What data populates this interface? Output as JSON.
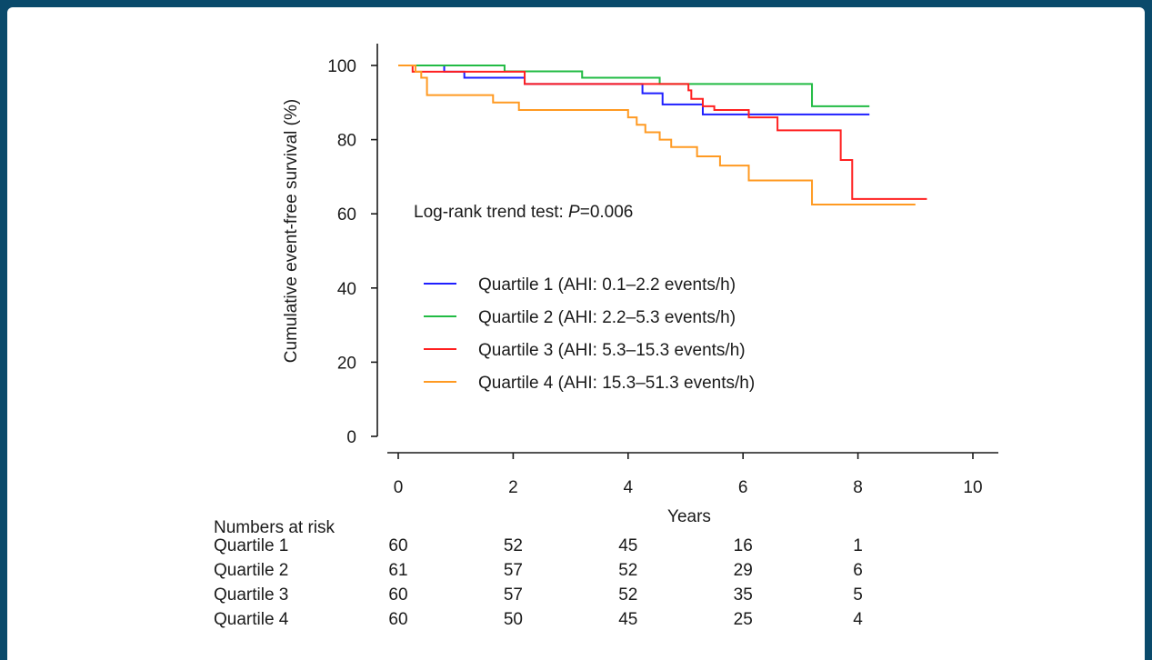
{
  "chart_data": {
    "type": "line",
    "step": true,
    "title": "",
    "xlabel": "Years",
    "ylabel": "Cumulative event-free survival (%)",
    "xlim": [
      0,
      10
    ],
    "ylim": [
      0,
      100
    ],
    "xticks": [
      0,
      2,
      4,
      6,
      8,
      10
    ],
    "yticks": [
      0,
      20,
      40,
      60,
      80,
      100
    ],
    "grid": false,
    "legend_position": "center",
    "annotation": {
      "prefix": "Log-rank trend test: ",
      "italic": "P",
      "suffix": "=0.006"
    },
    "series": [
      {
        "name": "Quartile 1 (AHI: 0.1–2.2 events/h)",
        "color": "#1f1fff",
        "x": [
          0,
          0.8,
          1.15,
          2.2,
          4.25,
          4.6,
          5.3,
          8.2
        ],
        "y": [
          100,
          98.3,
          96.7,
          95.0,
          92.5,
          89.5,
          86.8,
          86.8
        ]
      },
      {
        "name": "Quartile 2 (AHI: 2.2–5.3 events/h)",
        "color": "#22bb44",
        "x": [
          0,
          1.85,
          3.2,
          4.55,
          7.2,
          8.2
        ],
        "y": [
          100,
          98.4,
          96.7,
          95.0,
          89.0,
          89.0
        ]
      },
      {
        "name": "Quartile 3 (AHI: 5.3–15.3 events/h)",
        "color": "#ff2020",
        "x": [
          0,
          0.25,
          2.2,
          5.0,
          5.05,
          5.1,
          5.3,
          5.5,
          6.1,
          6.6,
          7.7,
          7.9,
          9.2
        ],
        "y": [
          100,
          98.3,
          95.0,
          95.0,
          93.3,
          91.0,
          89.0,
          88.0,
          86.0,
          82.5,
          74.5,
          64.0,
          64.0
        ]
      },
      {
        "name": "Quartile 4 (AHI: 15.3–51.3 events/h)",
        "color": "#ff9a22",
        "x": [
          0,
          0.3,
          0.4,
          0.5,
          1.65,
          2.1,
          4.0,
          4.15,
          4.3,
          4.55,
          4.75,
          5.2,
          5.6,
          6.1,
          7.2,
          9.0
        ],
        "y": [
          100,
          98.3,
          96.7,
          92.0,
          90.0,
          88.0,
          86.0,
          84.0,
          82.0,
          80.0,
          78.0,
          75.5,
          73.0,
          69.0,
          62.5,
          62.5
        ]
      }
    ],
    "risk_table": {
      "header": "Numbers at risk",
      "times": [
        0,
        2,
        4,
        6,
        8
      ],
      "rows": [
        {
          "label": "Quartile 1",
          "values": [
            "60",
            "52",
            "45",
            "16",
            "1"
          ]
        },
        {
          "label": "Quartile 2",
          "values": [
            "61",
            "57",
            "52",
            "29",
            "6"
          ]
        },
        {
          "label": "Quartile 3",
          "values": [
            "60",
            "57",
            "52",
            "35",
            "5"
          ]
        },
        {
          "label": "Quartile 4",
          "values": [
            "60",
            "50",
            "45",
            "25",
            "4"
          ]
        }
      ]
    }
  }
}
